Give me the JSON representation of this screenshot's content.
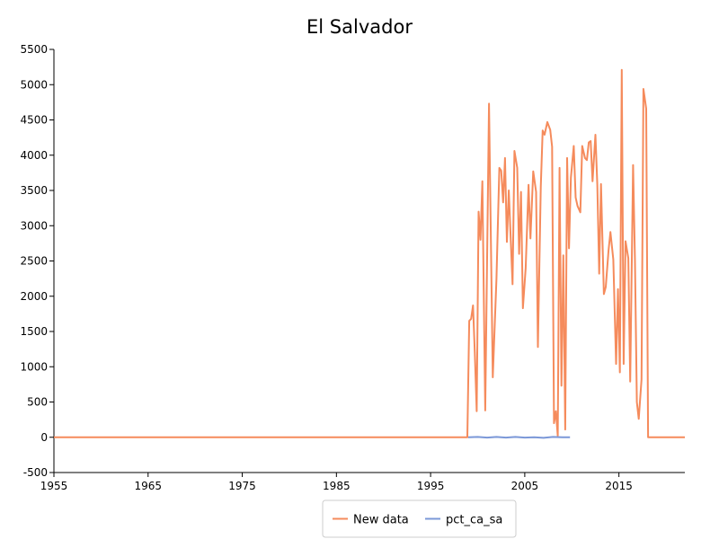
{
  "chart_data": {
    "type": "line",
    "title": "El Salvador",
    "xlabel": "",
    "ylabel": "",
    "xlim": [
      1955,
      2022
    ],
    "ylim": [
      -500,
      5500
    ],
    "x_ticks": [
      "1955",
      "1965",
      "1975",
      "1985",
      "1995",
      "2005",
      "2015"
    ],
    "y_ticks": [
      "-500",
      "0",
      "500",
      "1000",
      "1500",
      "2000",
      "2500",
      "3000",
      "3500",
      "4000",
      "4500",
      "5000",
      "5500"
    ],
    "grid": false,
    "legend_position": "bottom-center",
    "series": [
      {
        "name": "New data",
        "color": "#f58b5c",
        "points": [
          [
            1955,
            0
          ],
          [
            1998.9,
            0
          ],
          [
            1999.1,
            1650
          ],
          [
            1999.3,
            1680
          ],
          [
            1999.5,
            1870
          ],
          [
            1999.7,
            1200
          ],
          [
            1999.9,
            370
          ],
          [
            2000.1,
            3200
          ],
          [
            2000.3,
            2800
          ],
          [
            2000.5,
            3630
          ],
          [
            2000.8,
            380
          ],
          [
            2001.2,
            4730
          ],
          [
            2001.6,
            850
          ],
          [
            2002.0,
            2250
          ],
          [
            2002.3,
            3820
          ],
          [
            2002.5,
            3780
          ],
          [
            2002.7,
            3330
          ],
          [
            2002.9,
            3960
          ],
          [
            2003.1,
            2770
          ],
          [
            2003.3,
            3500
          ],
          [
            2003.7,
            2170
          ],
          [
            2003.9,
            4060
          ],
          [
            2004.2,
            3820
          ],
          [
            2004.4,
            2600
          ],
          [
            2004.6,
            3480
          ],
          [
            2004.8,
            1830
          ],
          [
            2005.1,
            2400
          ],
          [
            2005.4,
            3580
          ],
          [
            2005.6,
            2820
          ],
          [
            2005.9,
            3770
          ],
          [
            2006.2,
            3480
          ],
          [
            2006.4,
            1280
          ],
          [
            2006.7,
            3550
          ],
          [
            2006.9,
            4350
          ],
          [
            2007.1,
            4290
          ],
          [
            2007.4,
            4470
          ],
          [
            2007.7,
            4360
          ],
          [
            2007.9,
            4120
          ],
          [
            2008.1,
            200
          ],
          [
            2008.3,
            370
          ],
          [
            2008.5,
            20
          ],
          [
            2008.7,
            3820
          ],
          [
            2008.9,
            730
          ],
          [
            2009.1,
            2580
          ],
          [
            2009.3,
            110
          ],
          [
            2009.5,
            3960
          ],
          [
            2009.7,
            2680
          ],
          [
            2009.9,
            3680
          ],
          [
            2010.2,
            4130
          ],
          [
            2010.4,
            3400
          ],
          [
            2010.6,
            3280
          ],
          [
            2010.9,
            3190
          ],
          [
            2011.1,
            4130
          ],
          [
            2011.4,
            3960
          ],
          [
            2011.6,
            3930
          ],
          [
            2011.8,
            4180
          ],
          [
            2012.0,
            4200
          ],
          [
            2012.2,
            3630
          ],
          [
            2012.5,
            4290
          ],
          [
            2012.7,
            3580
          ],
          [
            2012.9,
            2320
          ],
          [
            2013.1,
            3590
          ],
          [
            2013.4,
            2030
          ],
          [
            2013.6,
            2130
          ],
          [
            2013.9,
            2650
          ],
          [
            2014.1,
            2910
          ],
          [
            2014.4,
            2520
          ],
          [
            2014.7,
            1040
          ],
          [
            2014.9,
            2100
          ],
          [
            2015.1,
            920
          ],
          [
            2015.3,
            5210
          ],
          [
            2015.5,
            1040
          ],
          [
            2015.7,
            2780
          ],
          [
            2016.0,
            2540
          ],
          [
            2016.2,
            790
          ],
          [
            2016.5,
            3860
          ],
          [
            2016.7,
            2500
          ],
          [
            2016.9,
            500
          ],
          [
            2017.1,
            260
          ],
          [
            2017.4,
            820
          ],
          [
            2017.6,
            4940
          ],
          [
            2017.9,
            4660
          ],
          [
            2018.1,
            0
          ],
          [
            2022.0,
            0
          ]
        ]
      },
      {
        "name": "pct_ca_sa",
        "color": "#7b98d8",
        "points": [
          [
            1999.0,
            0
          ],
          [
            2000.0,
            5
          ],
          [
            2001.0,
            -5
          ],
          [
            2002.0,
            5
          ],
          [
            2003.0,
            -5
          ],
          [
            2004.0,
            5
          ],
          [
            2005.0,
            -5
          ],
          [
            2006.0,
            0
          ],
          [
            2007.0,
            -8
          ],
          [
            2008.0,
            5
          ],
          [
            2009.0,
            0
          ],
          [
            2009.8,
            0
          ]
        ]
      }
    ]
  }
}
